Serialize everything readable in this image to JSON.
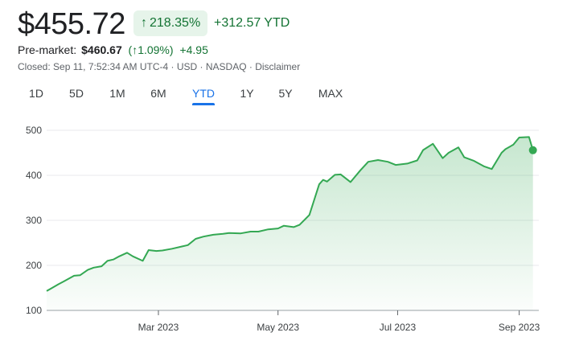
{
  "quote": {
    "price": "$455.72",
    "change_pct": "218.35%",
    "change_arrow": "↑",
    "change_abs": "+312.57",
    "change_period": "YTD",
    "premarket_label": "Pre-market:",
    "premarket_price": "$460.67",
    "premarket_pct": "1.09%",
    "premarket_arrow": "↑",
    "premarket_abs": "+4.95",
    "closed_info": "Closed: Sep 11, 7:52:34 AM UTC-4 · USD · NASDAQ · ",
    "disclaimer": "Disclaimer"
  },
  "tabs": [
    "1D",
    "5D",
    "1M",
    "6M",
    "YTD",
    "1Y",
    "5Y",
    "MAX"
  ],
  "active_tab": "YTD",
  "colors": {
    "up": "#137333",
    "line": "#34a853",
    "accent": "#1a73e8",
    "pill_bg": "#e6f4ea"
  },
  "chart_data": {
    "type": "area",
    "ylim": [
      100,
      500
    ],
    "yticks": [
      100,
      200,
      300,
      400,
      500
    ],
    "xticks": [
      "Mar 2023",
      "May 2023",
      "Jul 2023",
      "Sep 2023"
    ],
    "grid": true,
    "x": [
      "2023-01-03",
      "2023-01-05",
      "2023-01-09",
      "2023-01-12",
      "2023-01-17",
      "2023-01-20",
      "2023-01-24",
      "2023-01-27",
      "2023-01-31",
      "2023-02-03",
      "2023-02-06",
      "2023-02-09",
      "2023-02-13",
      "2023-02-16",
      "2023-02-21",
      "2023-02-24",
      "2023-02-28",
      "2023-03-03",
      "2023-03-08",
      "2023-03-13",
      "2023-03-16",
      "2023-03-20",
      "2023-03-24",
      "2023-03-29",
      "2023-04-03",
      "2023-04-06",
      "2023-04-12",
      "2023-04-17",
      "2023-04-21",
      "2023-04-26",
      "2023-05-01",
      "2023-05-04",
      "2023-05-09",
      "2023-05-12",
      "2023-05-17",
      "2023-05-22",
      "2023-05-24",
      "2023-05-26",
      "2023-05-30",
      "2023-06-02",
      "2023-06-07",
      "2023-06-12",
      "2023-06-16",
      "2023-06-21",
      "2023-06-26",
      "2023-06-30",
      "2023-07-06",
      "2023-07-11",
      "2023-07-14",
      "2023-07-19",
      "2023-07-24",
      "2023-07-27",
      "2023-08-01",
      "2023-08-04",
      "2023-08-09",
      "2023-08-14",
      "2023-08-18",
      "2023-08-23",
      "2023-08-25",
      "2023-08-29",
      "2023-09-01",
      "2023-09-06",
      "2023-09-08"
    ],
    "series": [
      {
        "values": [
          143,
          148,
          158,
          165,
          177,
          178,
          190,
          195,
          198,
          210,
          213,
          220,
          228,
          220,
          210,
          234,
          232,
          233,
          237,
          242,
          245,
          259,
          264,
          268,
          270,
          272,
          271,
          275,
          275,
          280,
          282,
          288,
          285,
          290,
          312,
          380,
          390,
          386,
          401,
          402,
          385,
          411,
          430,
          434,
          430,
          423,
          426,
          433,
          456,
          470,
          438,
          450,
          462,
          440,
          432,
          420,
          414,
          450,
          458,
          468,
          484,
          485,
          455.72
        ]
      }
    ]
  }
}
